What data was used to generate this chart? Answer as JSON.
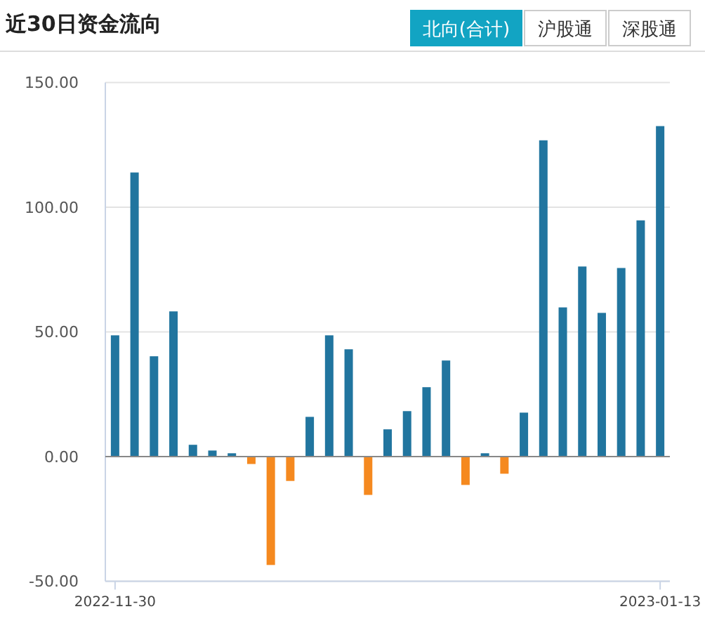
{
  "chart_data": {
    "type": "bar",
    "title": "近30日资金流向",
    "annotations": [
      "北向(合计)",
      "沪股通",
      "深股通"
    ],
    "categories": [
      "2022-11-30",
      null,
      null,
      null,
      null,
      null,
      null,
      null,
      null,
      null,
      null,
      null,
      null,
      null,
      null,
      null,
      null,
      null,
      null,
      null,
      null,
      null,
      null,
      null,
      null,
      null,
      null,
      null,
      "2023-01-13"
    ],
    "values": [
      48.6,
      113.9,
      40.2,
      58.2,
      4.7,
      2.4,
      1.3,
      -3.0,
      -43.5,
      -9.8,
      15.9,
      48.6,
      43.0,
      -15.4,
      10.9,
      18.2,
      27.8,
      38.5,
      -11.4,
      1.3,
      -6.9,
      17.6,
      126.8,
      59.8,
      76.2,
      57.6,
      75.6,
      94.7,
      132.5
    ],
    "colors": [
      "#21759f",
      "#21759f",
      "#21759f",
      "#21759f",
      "#21759f",
      "#21759f",
      "#21759f",
      "#f5891f",
      "#f5891f",
      "#f5891f",
      "#21759f",
      "#21759f",
      "#21759f",
      "#f5891f",
      "#21759f",
      "#21759f",
      "#21759f",
      "#21759f",
      "#f5891f",
      "#21759f",
      "#f5891f",
      "#21759f",
      "#21759f",
      "#21759f",
      "#21759f",
      "#21759f",
      "#21759f",
      "#21759f",
      "#21759f"
    ],
    "ylim": [
      -50,
      150
    ],
    "yticks": [
      {
        "value": -50,
        "label": "-50.00"
      },
      {
        "value": 0,
        "label": "0.00"
      },
      {
        "value": 50,
        "label": "50.00"
      },
      {
        "value": 100,
        "label": "100.00"
      },
      {
        "value": 150,
        "label": "150.00"
      }
    ],
    "grid": "y"
  }
}
